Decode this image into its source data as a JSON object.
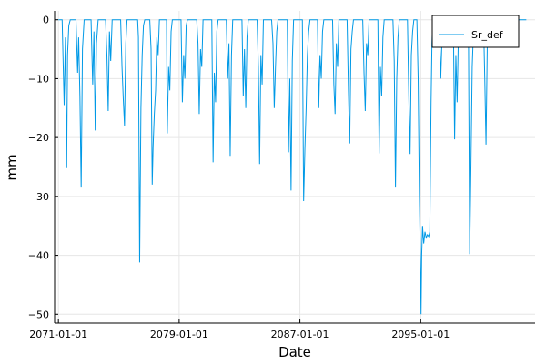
{
  "chart_data": {
    "type": "line",
    "xlabel": "Date",
    "ylabel": "mm",
    "ylim": [
      -51.5,
      1.5
    ],
    "xlim": [
      "2070-10-01",
      "2102-08-01"
    ],
    "grid": true,
    "legend_position": "top-right",
    "colors": {
      "series": "#0099e6",
      "grid": "#e6e6e6",
      "axis": "#000000"
    },
    "xticks": [
      "2071-01-01",
      "2079-01-01",
      "2087-01-01",
      "2095-01-01"
    ],
    "yticks": [
      0,
      -10,
      -20,
      -30,
      -40,
      -50
    ],
    "series": [
      {
        "name": "Sr_def",
        "points": [
          [
            "2071-01-01",
            0
          ],
          [
            "2071-04-01",
            0
          ],
          [
            "2071-05-20",
            -14.5
          ],
          [
            "2071-06-20",
            -3
          ],
          [
            "2071-07-20",
            -25.2
          ],
          [
            "2071-08-10",
            -6
          ],
          [
            "2071-09-10",
            -1
          ],
          [
            "2071-10-15",
            0
          ],
          [
            "2072-03-01",
            0
          ],
          [
            "2072-04-10",
            -9
          ],
          [
            "2072-05-05",
            -3
          ],
          [
            "2072-06-05",
            -13
          ],
          [
            "2072-07-05",
            -28.5
          ],
          [
            "2072-08-05",
            -5
          ],
          [
            "2072-09-15",
            0
          ],
          [
            "2073-03-01",
            0
          ],
          [
            "2073-04-10",
            -11
          ],
          [
            "2073-05-10",
            -2
          ],
          [
            "2073-06-10",
            -18.8
          ],
          [
            "2073-07-10",
            -4
          ],
          [
            "2073-08-20",
            0
          ],
          [
            "2074-02-15",
            0
          ],
          [
            "2074-03-20",
            -6
          ],
          [
            "2074-04-20",
            -15.5
          ],
          [
            "2074-05-20",
            -2
          ],
          [
            "2074-06-20",
            -7
          ],
          [
            "2074-07-25",
            0
          ],
          [
            "2075-02-15",
            0
          ],
          [
            "2075-03-20",
            -8
          ],
          [
            "2075-04-20",
            -13.5
          ],
          [
            "2075-05-20",
            -18
          ],
          [
            "2075-06-20",
            -4
          ],
          [
            "2075-07-20",
            0
          ],
          [
            "2076-04-01",
            0
          ],
          [
            "2076-04-20",
            -3
          ],
          [
            "2076-05-20",
            -41.2
          ],
          [
            "2076-06-20",
            -15
          ],
          [
            "2076-07-20",
            -6
          ],
          [
            "2076-08-20",
            -1
          ],
          [
            "2076-09-20",
            0
          ],
          [
            "2077-01-20",
            0
          ],
          [
            "2077-02-20",
            -5
          ],
          [
            "2077-03-20",
            -28
          ],
          [
            "2077-04-10",
            -21.5
          ],
          [
            "2077-05-10",
            -16
          ],
          [
            "2077-06-10",
            -12
          ],
          [
            "2077-07-10",
            -3
          ],
          [
            "2077-08-10",
            -6
          ],
          [
            "2077-09-10",
            0
          ],
          [
            "2078-03-01",
            0
          ],
          [
            "2078-03-20",
            -19.3
          ],
          [
            "2078-04-20",
            -8
          ],
          [
            "2078-05-20",
            -12
          ],
          [
            "2078-06-20",
            -2
          ],
          [
            "2078-07-20",
            0
          ],
          [
            "2079-02-15",
            0
          ],
          [
            "2079-03-20",
            -14
          ],
          [
            "2079-04-20",
            -6
          ],
          [
            "2079-05-20",
            -10
          ],
          [
            "2079-06-20",
            -1
          ],
          [
            "2079-07-20",
            0
          ],
          [
            "2080-03-01",
            0
          ],
          [
            "2080-04-01",
            -4
          ],
          [
            "2080-05-01",
            -16
          ],
          [
            "2080-06-01",
            -5
          ],
          [
            "2080-07-01",
            -8
          ],
          [
            "2080-08-01",
            0
          ],
          [
            "2081-03-01",
            0
          ],
          [
            "2081-04-01",
            -24.2
          ],
          [
            "2081-05-01",
            -9
          ],
          [
            "2081-06-01",
            -14
          ],
          [
            "2081-07-01",
            -2
          ],
          [
            "2081-08-01",
            0
          ],
          [
            "2082-02-15",
            0
          ],
          [
            "2082-03-20",
            -10
          ],
          [
            "2082-04-20",
            -4
          ],
          [
            "2082-05-20",
            -23.1
          ],
          [
            "2082-06-20",
            -6
          ],
          [
            "2082-07-20",
            0
          ],
          [
            "2083-03-01",
            0
          ],
          [
            "2083-04-01",
            -13
          ],
          [
            "2083-05-01",
            -5
          ],
          [
            "2083-06-01",
            -15
          ],
          [
            "2083-07-01",
            -3
          ],
          [
            "2083-08-01",
            0
          ],
          [
            "2084-03-01",
            0
          ],
          [
            "2084-04-01",
            -8
          ],
          [
            "2084-05-01",
            -24.5
          ],
          [
            "2084-06-01",
            -6
          ],
          [
            "2084-07-01",
            -11
          ],
          [
            "2084-08-01",
            0
          ],
          [
            "2085-02-15",
            0
          ],
          [
            "2085-03-20",
            -4
          ],
          [
            "2085-04-20",
            -15
          ],
          [
            "2085-05-20",
            -8
          ],
          [
            "2085-06-20",
            -2
          ],
          [
            "2085-07-20",
            0
          ],
          [
            "2086-03-01",
            0
          ],
          [
            "2086-04-01",
            -22.5
          ],
          [
            "2086-05-01",
            -10
          ],
          [
            "2086-06-01",
            -29
          ],
          [
            "2086-07-01",
            -7
          ],
          [
            "2086-08-01",
            0
          ],
          [
            "2087-03-01",
            0
          ],
          [
            "2087-04-01",
            -30.8
          ],
          [
            "2087-05-01",
            -22
          ],
          [
            "2087-06-01",
            -15
          ],
          [
            "2087-07-01",
            -6
          ],
          [
            "2087-08-01",
            -2
          ],
          [
            "2087-09-01",
            0
          ],
          [
            "2088-03-01",
            0
          ],
          [
            "2088-04-01",
            -15
          ],
          [
            "2088-05-01",
            -6
          ],
          [
            "2088-06-01",
            -10
          ],
          [
            "2088-07-01",
            -2
          ],
          [
            "2088-08-01",
            0
          ],
          [
            "2089-03-01",
            0
          ],
          [
            "2089-04-01",
            -11
          ],
          [
            "2089-05-01",
            -16
          ],
          [
            "2089-06-01",
            -4
          ],
          [
            "2089-07-01",
            -8
          ],
          [
            "2089-08-01",
            0
          ],
          [
            "2090-02-15",
            0
          ],
          [
            "2090-03-20",
            -12
          ],
          [
            "2090-04-20",
            -21
          ],
          [
            "2090-05-20",
            -5
          ],
          [
            "2090-06-20",
            -2
          ],
          [
            "2090-07-20",
            0
          ],
          [
            "2091-03-01",
            0
          ],
          [
            "2091-04-01",
            -9
          ],
          [
            "2091-05-01",
            -15.5
          ],
          [
            "2091-06-01",
            -4
          ],
          [
            "2091-07-01",
            -6
          ],
          [
            "2091-08-01",
            0
          ],
          [
            "2092-03-01",
            0
          ],
          [
            "2092-04-01",
            -22.7
          ],
          [
            "2092-05-01",
            -8
          ],
          [
            "2092-06-01",
            -13
          ],
          [
            "2092-07-01",
            -3
          ],
          [
            "2092-08-01",
            0
          ],
          [
            "2093-03-01",
            0
          ],
          [
            "2093-04-01",
            -7
          ],
          [
            "2093-05-01",
            -28.5
          ],
          [
            "2093-06-01",
            -10
          ],
          [
            "2093-07-01",
            -3
          ],
          [
            "2093-08-01",
            0
          ],
          [
            "2094-02-15",
            0
          ],
          [
            "2094-03-20",
            -13
          ],
          [
            "2094-04-20",
            -22.8
          ],
          [
            "2094-05-20",
            -6
          ],
          [
            "2094-06-20",
            -2
          ],
          [
            "2094-07-20",
            0
          ],
          [
            "2094-10-01",
            0
          ],
          [
            "2094-11-01",
            -10
          ],
          [
            "2094-12-01",
            -30
          ],
          [
            "2095-01-01",
            -44
          ],
          [
            "2095-01-10",
            -50
          ],
          [
            "2095-01-25",
            -40
          ],
          [
            "2095-02-15",
            -35
          ],
          [
            "2095-03-15",
            -38
          ],
          [
            "2095-04-15",
            -36
          ],
          [
            "2095-05-15",
            -37
          ],
          [
            "2095-06-15",
            -36.5
          ],
          [
            "2095-07-15",
            -36.8
          ],
          [
            "2095-08-10",
            -36
          ],
          [
            "2095-09-10",
            -14
          ],
          [
            "2095-10-01",
            -4
          ],
          [
            "2095-10-20",
            0
          ],
          [
            "2096-03-01",
            0
          ],
          [
            "2096-04-01",
            -2
          ],
          [
            "2096-05-01",
            -10
          ],
          [
            "2096-06-01",
            -3
          ],
          [
            "2096-07-01",
            0
          ],
          [
            "2097-03-01",
            0
          ],
          [
            "2097-04-01",
            -20.3
          ],
          [
            "2097-05-01",
            -6
          ],
          [
            "2097-06-01",
            -14
          ],
          [
            "2097-07-01",
            -3
          ],
          [
            "2097-08-01",
            0
          ],
          [
            "2098-03-01",
            0
          ],
          [
            "2098-04-01",
            -39.8
          ],
          [
            "2098-05-01",
            -25
          ],
          [
            "2098-06-01",
            -8
          ],
          [
            "2098-07-01",
            -2
          ],
          [
            "2098-08-01",
            0
          ],
          [
            "2099-03-01",
            0
          ],
          [
            "2099-04-01",
            -10
          ],
          [
            "2099-05-01",
            -21.2
          ],
          [
            "2099-06-01",
            -4
          ],
          [
            "2099-07-01",
            0
          ],
          [
            "2100-01-01",
            0
          ],
          [
            "2102-01-01",
            0
          ]
        ]
      }
    ]
  }
}
